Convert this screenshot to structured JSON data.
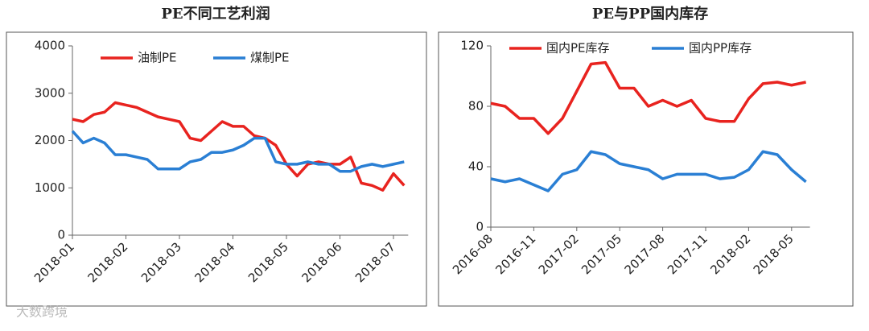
{
  "chart_data": [
    {
      "type": "line",
      "title": "PE不同工艺利润",
      "categories": [
        "2018-01",
        null,
        null,
        null,
        null,
        "2018-02",
        null,
        null,
        null,
        null,
        "2018-03",
        null,
        null,
        null,
        null,
        "2018-04",
        null,
        null,
        null,
        null,
        "2018-05",
        null,
        null,
        null,
        null,
        "2018-06",
        null,
        null,
        null,
        null,
        "2018-07",
        null
      ],
      "series": [
        {
          "name": "油制PE",
          "color": "#e8231f",
          "values": [
            2450,
            2400,
            2550,
            2600,
            2800,
            2750,
            2700,
            2600,
            2500,
            2450,
            2400,
            2050,
            2000,
            2200,
            2400,
            2300,
            2300,
            2100,
            2050,
            1900,
            1500,
            1250,
            1500,
            1550,
            1500,
            1500,
            1650,
            1100,
            1050,
            950,
            1300,
            1050
          ]
        },
        {
          "name": "煤制PE",
          "color": "#2a7fd4",
          "values": [
            2200,
            1950,
            2050,
            1950,
            1700,
            1700,
            1650,
            1600,
            1400,
            1400,
            1400,
            1550,
            1600,
            1750,
            1750,
            1800,
            1900,
            2050,
            2050,
            1550,
            1500,
            1500,
            1550,
            1500,
            1500,
            1350,
            1350,
            1450,
            1500,
            1450,
            1500,
            1550
          ]
        }
      ],
      "ylim": [
        0,
        4000
      ],
      "yticks": [
        0,
        1000,
        2000,
        3000,
        4000
      ]
    },
    {
      "type": "line",
      "title": "PE与PP国内库存",
      "categories": [
        "2016-08",
        null,
        null,
        "2016-11",
        null,
        null,
        "2017-02",
        null,
        null,
        "2017-05",
        null,
        null,
        "2017-08",
        null,
        null,
        "2017-11",
        null,
        null,
        "2018-02",
        null,
        null,
        "2018-05",
        null
      ],
      "series": [
        {
          "name": "国内PE库存",
          "color": "#e8231f",
          "values": [
            82,
            80,
            72,
            72,
            62,
            72,
            90,
            108,
            109,
            92,
            92,
            80,
            84,
            80,
            84,
            72,
            70,
            70,
            85,
            95,
            96,
            94,
            96
          ]
        },
        {
          "name": "国内PP库存",
          "color": "#2a7fd4",
          "values": [
            32,
            30,
            32,
            28,
            24,
            35,
            38,
            50,
            48,
            42,
            40,
            38,
            32,
            35,
            35,
            35,
            32,
            33,
            38,
            50,
            48,
            38,
            30
          ]
        }
      ],
      "ylim": [
        0,
        120
      ],
      "yticks": [
        0,
        40,
        80,
        120
      ]
    }
  ],
  "watermark": "大数跨境"
}
